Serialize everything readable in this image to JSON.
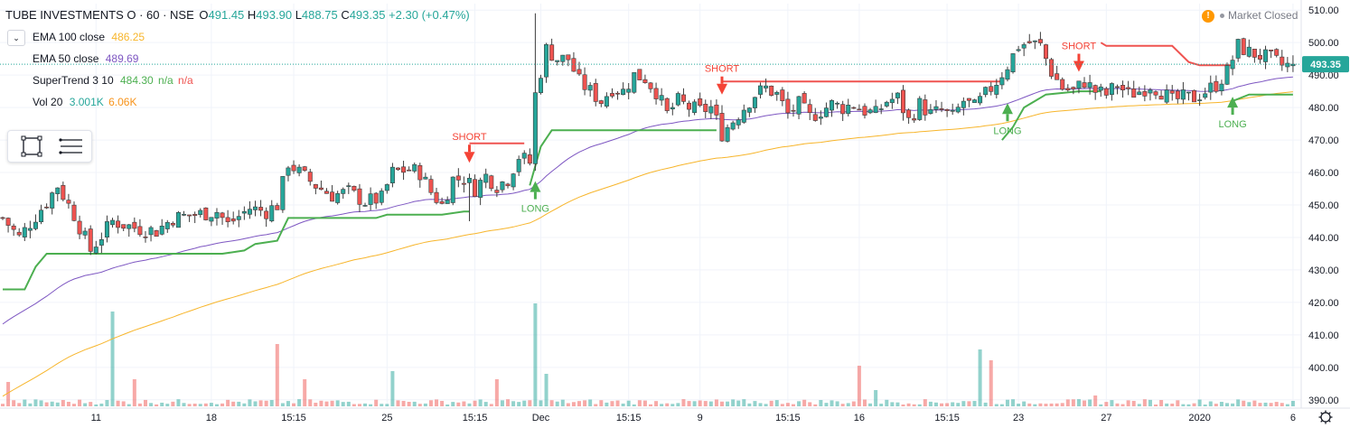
{
  "header": {
    "symbol": "TUBE INVESTMENTS O · 60 · NSE",
    "open_label": "O",
    "open": "491.45",
    "high_label": "H",
    "high": "493.90",
    "low_label": "L",
    "low": "488.75",
    "close_label": "C",
    "close": "493.35",
    "change": "+2.30 (+0.47%)"
  },
  "indicators": [
    {
      "name": "EMA 100 close",
      "value": "486.25",
      "color": "#f7b52b"
    },
    {
      "name": "EMA 50 close",
      "value": "489.69",
      "color": "#7e57c2"
    },
    {
      "name": "SuperTrend 3 10",
      "value": "484.30",
      "extra1": "n/a",
      "extra2": "n/a",
      "color": "#4caf50"
    },
    {
      "name": "Vol 20",
      "value": "3.001K",
      "extra1": "6.06K",
      "color": "#26a69a"
    }
  ],
  "status": {
    "market": "Market Closed",
    "warn_icon": "!"
  },
  "colors": {
    "up": "#26a69a",
    "down": "#ef5350",
    "ema100": "#f7b52b",
    "ema50": "#7e57c2",
    "supertrend_up": "#4caf50",
    "supertrend_down": "#ef5350",
    "price_label": "#26a69a"
  },
  "chart_data": {
    "type": "candlestick",
    "y_axis": {
      "min": 388,
      "max": 512,
      "ticks": [
        390,
        400,
        410,
        420,
        430,
        440,
        450,
        460,
        470,
        480,
        490,
        500,
        510
      ],
      "side": "right"
    },
    "x_axis_labels": [
      {
        "label": "11",
        "bar": 17
      },
      {
        "label": "18",
        "bar": 38
      },
      {
        "label": "15:15",
        "bar": 53
      },
      {
        "label": "25",
        "bar": 70
      },
      {
        "label": "15:15",
        "bar": 86
      },
      {
        "label": "Dec",
        "bar": 98
      },
      {
        "label": "15:15",
        "bar": 114
      },
      {
        "label": "9",
        "bar": 127
      },
      {
        "label": "15:15",
        "bar": 143
      },
      {
        "label": "16",
        "bar": 156
      },
      {
        "label": "15:15",
        "bar": 172
      },
      {
        "label": "23",
        "bar": 185
      },
      {
        "label": "27",
        "bar": 201
      },
      {
        "label": "2020",
        "bar": 218
      },
      {
        "label": "6",
        "bar": 235
      }
    ],
    "last_price": "493.35",
    "anchors": [
      [
        0,
        446
      ],
      [
        3,
        440
      ],
      [
        8,
        451
      ],
      [
        10,
        456
      ],
      [
        13,
        447
      ],
      [
        16,
        436
      ],
      [
        20,
        445
      ],
      [
        24,
        443
      ],
      [
        28,
        442
      ],
      [
        31,
        446
      ],
      [
        35,
        447
      ],
      [
        39,
        448
      ],
      [
        41,
        444
      ],
      [
        45,
        449
      ],
      [
        48,
        448
      ],
      [
        50,
        450
      ],
      [
        52,
        463
      ],
      [
        54,
        460
      ],
      [
        57,
        456
      ],
      [
        60,
        453
      ],
      [
        63,
        454
      ],
      [
        66,
        451
      ],
      [
        69,
        452
      ],
      [
        71,
        460
      ],
      [
        74,
        461
      ],
      [
        76,
        460
      ],
      [
        78,
        454
      ],
      [
        80,
        450
      ],
      [
        82,
        458
      ],
      [
        84,
        458
      ],
      [
        86,
        455
      ],
      [
        88,
        459
      ],
      [
        90,
        456
      ],
      [
        92,
        458
      ],
      [
        94,
        465
      ],
      [
        96,
        463
      ],
      [
        97,
        484
      ],
      [
        99,
        498
      ],
      [
        101,
        495
      ],
      [
        103,
        495
      ],
      [
        105,
        488
      ],
      [
        107,
        485
      ],
      [
        109,
        482
      ],
      [
        111,
        486
      ],
      [
        113,
        485
      ],
      [
        115,
        490
      ],
      [
        117,
        489
      ],
      [
        119,
        485
      ],
      [
        121,
        478
      ],
      [
        123,
        482
      ],
      [
        125,
        480
      ],
      [
        127,
        479
      ],
      [
        129,
        480
      ],
      [
        131,
        472
      ],
      [
        133,
        476
      ],
      [
        135,
        480
      ],
      [
        137,
        484
      ],
      [
        139,
        486
      ],
      [
        141,
        484
      ],
      [
        143,
        478
      ],
      [
        145,
        481
      ],
      [
        147,
        477
      ],
      [
        149,
        479
      ],
      [
        151,
        481
      ],
      [
        153,
        480
      ],
      [
        155,
        481
      ],
      [
        157,
        479
      ],
      [
        159,
        478
      ],
      [
        161,
        482
      ],
      [
        163,
        483
      ],
      [
        165,
        476
      ],
      [
        167,
        481
      ],
      [
        169,
        478
      ],
      [
        171,
        479
      ],
      [
        173,
        477
      ],
      [
        175,
        482
      ],
      [
        177,
        480
      ],
      [
        179,
        484
      ],
      [
        181,
        488
      ],
      [
        183,
        493
      ],
      [
        185,
        499
      ],
      [
        187,
        500
      ],
      [
        189,
        499
      ],
      [
        191,
        491
      ],
      [
        193,
        486
      ],
      [
        195,
        485
      ],
      [
        197,
        488
      ],
      [
        199,
        485
      ],
      [
        201,
        484
      ],
      [
        203,
        487
      ],
      [
        205,
        484
      ],
      [
        207,
        485
      ],
      [
        209,
        487
      ],
      [
        211,
        485
      ],
      [
        213,
        482
      ],
      [
        215,
        483
      ],
      [
        217,
        483
      ],
      [
        219,
        485
      ],
      [
        221,
        487
      ],
      [
        223,
        491
      ],
      [
        225,
        499
      ],
      [
        227,
        497
      ],
      [
        229,
        496
      ],
      [
        231,
        495
      ],
      [
        233,
        493
      ],
      [
        235,
        493
      ]
    ],
    "total_bars": 236,
    "volume": {
      "max_label": "",
      "spikes": [
        [
          1,
          9
        ],
        [
          20,
          35
        ],
        [
          24,
          10
        ],
        [
          50,
          23
        ],
        [
          55,
          10
        ],
        [
          71,
          13
        ],
        [
          90,
          10
        ],
        [
          97,
          38
        ],
        [
          99,
          12
        ],
        [
          156,
          15
        ],
        [
          159,
          6
        ],
        [
          178,
          21
        ],
        [
          180,
          17
        ],
        [
          199,
          4
        ]
      ]
    },
    "supertrend": [
      [
        0,
        424
      ],
      [
        4,
        424
      ],
      [
        6,
        431
      ],
      [
        8,
        435
      ],
      [
        20,
        435
      ],
      [
        40,
        435
      ],
      [
        44,
        436
      ],
      [
        46,
        438
      ],
      [
        50,
        439
      ],
      [
        52,
        446
      ],
      [
        68,
        446
      ],
      [
        70,
        447
      ],
      [
        80,
        447
      ],
      [
        84,
        448
      ],
      [
        85,
        448
      ]
    ],
    "supertrend_short_1": [
      [
        85,
        469
      ],
      [
        95,
        469
      ]
    ],
    "supertrend_long_1": [
      [
        96,
        456
      ],
      [
        98,
        468
      ],
      [
        100,
        473
      ],
      [
        110,
        473
      ],
      [
        130,
        473
      ]
    ],
    "supertrend_short_2": [
      [
        131,
        488
      ],
      [
        182,
        488
      ]
    ],
    "supertrend_long_2": [
      [
        182,
        470
      ],
      [
        184,
        474
      ],
      [
        186,
        480
      ],
      [
        190,
        484
      ],
      [
        196,
        485
      ],
      [
        200,
        485
      ]
    ],
    "supertrend_short_3": [
      [
        200,
        500
      ],
      [
        201,
        499
      ],
      [
        213,
        499
      ],
      [
        216,
        494
      ],
      [
        218,
        493
      ],
      [
        224,
        493
      ]
    ],
    "supertrend_long_3": [
      [
        224,
        482
      ],
      [
        227,
        484
      ],
      [
        235,
        484
      ]
    ],
    "signals": [
      {
        "type": "SHORT",
        "bar": 85,
        "price": 463
      },
      {
        "type": "LONG",
        "bar": 97,
        "price": 454
      },
      {
        "type": "SHORT",
        "bar": 131,
        "price": 484
      },
      {
        "type": "LONG",
        "bar": 183,
        "price": 478
      },
      {
        "type": "SHORT",
        "bar": 196,
        "price": 491
      },
      {
        "type": "LONG",
        "bar": 224,
        "price": 480
      }
    ]
  }
}
